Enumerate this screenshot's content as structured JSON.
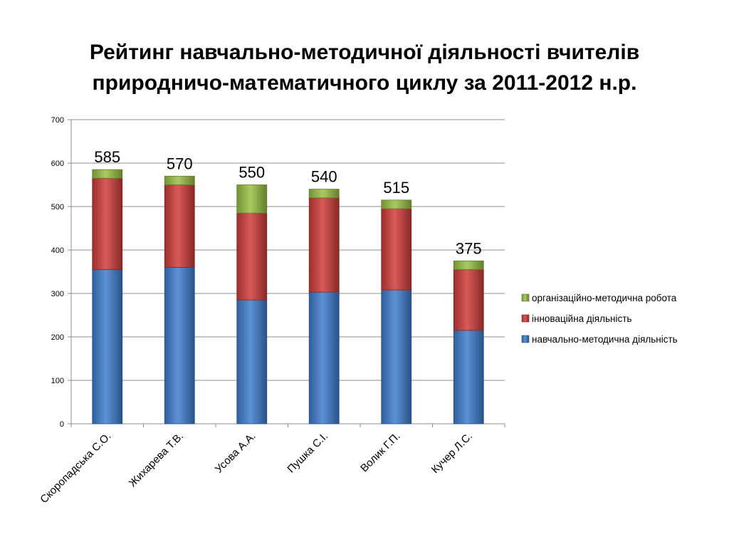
{
  "title_lines": [
    "Рейтинг навчально-методичної діяльності вчителів",
    "природничо-математичного циклу за 2011-2012 н.р."
  ],
  "chart_data": {
    "type": "bar",
    "stacked": true,
    "title": "Рейтинг навчально-методичної діяльності вчителів природничо-математичного циклу за 2011-2012 н.р.",
    "categories": [
      "Скоропадська С.О.",
      "Жихарева Т.В.",
      "Усова А.А.",
      "Пушка С.І.",
      "Волик Г.П.",
      "Кучер Л.С."
    ],
    "series": [
      {
        "name": "навчально-методична діяльність",
        "values": [
          355,
          360,
          285,
          303,
          308,
          215
        ],
        "color": "#3f7fd0"
      },
      {
        "name": "інноваційна діяльність",
        "values": [
          210,
          190,
          200,
          217,
          187,
          140
        ],
        "color": "#d13d3a"
      },
      {
        "name": "організаційно-методична робота",
        "values": [
          20,
          20,
          65,
          20,
          20,
          20
        ],
        "color": "#9ac245"
      }
    ],
    "totals": [
      585,
      570,
      550,
      540,
      515,
      375
    ],
    "ylim": [
      0,
      700
    ],
    "yticks": [
      0,
      100,
      200,
      300,
      400,
      500,
      600,
      700
    ],
    "grid": true,
    "legend": "right",
    "xlabel": "",
    "ylabel": ""
  }
}
